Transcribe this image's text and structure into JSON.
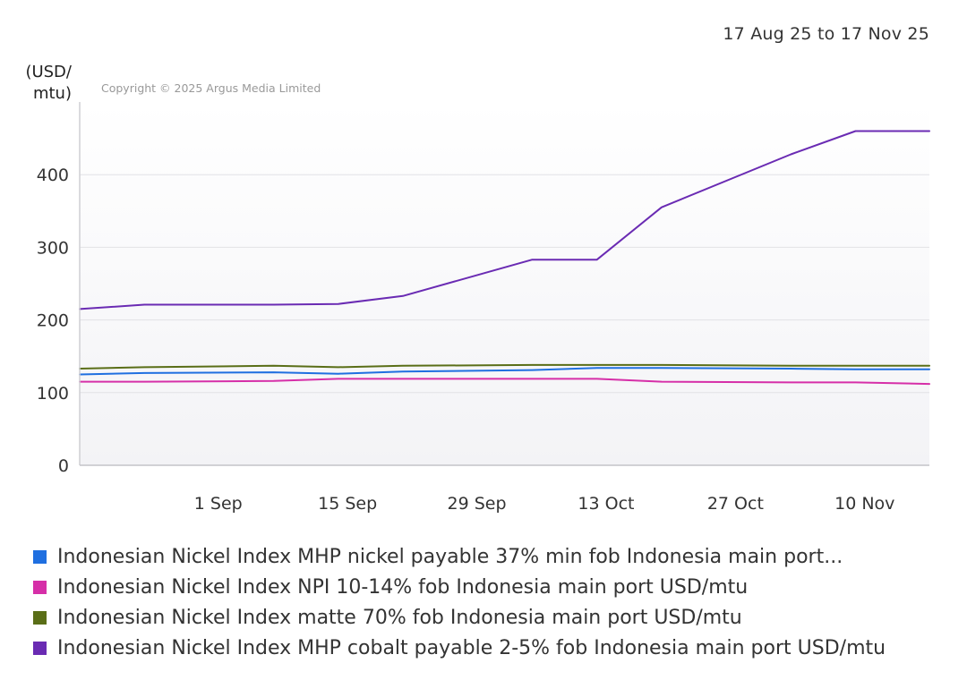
{
  "date_range": "17 Aug 25 to 17 Nov 25",
  "copyright": "Copyright © 2025 Argus Media Limited",
  "chart_data": {
    "type": "line",
    "ylabel": "(USD/ mtu)",
    "ylabel_lines": [
      "(USD/",
      "mtu)"
    ],
    "ylim": [
      0,
      500
    ],
    "yticks": [
      0,
      100,
      200,
      300,
      400
    ],
    "grid": true,
    "legend_position": "bottom",
    "x_range": [
      "2025-08-17",
      "2025-11-17"
    ],
    "xticks": [
      {
        "date": "2025-09-01",
        "label": "1 Sep"
      },
      {
        "date": "2025-09-15",
        "label": "15 Sep"
      },
      {
        "date": "2025-09-29",
        "label": "29 Sep"
      },
      {
        "date": "2025-10-13",
        "label": "13 Oct"
      },
      {
        "date": "2025-10-27",
        "label": "27 Oct"
      },
      {
        "date": "2025-11-10",
        "label": "10 Nov"
      }
    ],
    "series": [
      {
        "name": "Indonesian Nickel Index MHP nickel payable 37% min fob Indonesia main port...",
        "color": "#1f6fe0",
        "points": [
          {
            "x": "2025-08-17",
            "y": 125
          },
          {
            "x": "2025-08-24",
            "y": 127
          },
          {
            "x": "2025-09-07",
            "y": 128
          },
          {
            "x": "2025-09-14",
            "y": 126
          },
          {
            "x": "2025-09-21",
            "y": 129
          },
          {
            "x": "2025-10-05",
            "y": 131
          },
          {
            "x": "2025-10-12",
            "y": 134
          },
          {
            "x": "2025-10-19",
            "y": 134
          },
          {
            "x": "2025-11-02",
            "y": 133
          },
          {
            "x": "2025-11-09",
            "y": 132
          },
          {
            "x": "2025-11-17",
            "y": 132
          }
        ]
      },
      {
        "name": "Indonesian Nickel Index NPI 10-14% fob Indonesia main port USD/mtu",
        "color": "#d62fa8",
        "points": [
          {
            "x": "2025-08-17",
            "y": 115
          },
          {
            "x": "2025-08-24",
            "y": 115
          },
          {
            "x": "2025-09-07",
            "y": 116
          },
          {
            "x": "2025-09-14",
            "y": 119
          },
          {
            "x": "2025-09-21",
            "y": 119
          },
          {
            "x": "2025-10-05",
            "y": 119
          },
          {
            "x": "2025-10-12",
            "y": 119
          },
          {
            "x": "2025-10-19",
            "y": 115
          },
          {
            "x": "2025-11-02",
            "y": 114
          },
          {
            "x": "2025-11-09",
            "y": 114
          },
          {
            "x": "2025-11-17",
            "y": 112
          }
        ]
      },
      {
        "name": "Indonesian Nickel Index matte 70% fob Indonesia main port USD/mtu",
        "color": "#5a6e17",
        "points": [
          {
            "x": "2025-08-17",
            "y": 133
          },
          {
            "x": "2025-08-24",
            "y": 135
          },
          {
            "x": "2025-09-07",
            "y": 137
          },
          {
            "x": "2025-09-14",
            "y": 135
          },
          {
            "x": "2025-09-21",
            "y": 137
          },
          {
            "x": "2025-10-05",
            "y": 138
          },
          {
            "x": "2025-10-12",
            "y": 138
          },
          {
            "x": "2025-10-19",
            "y": 138
          },
          {
            "x": "2025-11-02",
            "y": 137
          },
          {
            "x": "2025-11-09",
            "y": 137
          },
          {
            "x": "2025-11-17",
            "y": 137
          }
        ]
      },
      {
        "name": "Indonesian Nickel Index MHP cobalt payable 2-5% fob Indonesia main port USD/mtu",
        "color": "#6a2bb3",
        "points": [
          {
            "x": "2025-08-17",
            "y": 215
          },
          {
            "x": "2025-08-24",
            "y": 221
          },
          {
            "x": "2025-09-07",
            "y": 221
          },
          {
            "x": "2025-09-14",
            "y": 222
          },
          {
            "x": "2025-09-21",
            "y": 233
          },
          {
            "x": "2025-10-05",
            "y": 283
          },
          {
            "x": "2025-10-12",
            "y": 283
          },
          {
            "x": "2025-10-19",
            "y": 355
          },
          {
            "x": "2025-11-02",
            "y": 428
          },
          {
            "x": "2025-11-09",
            "y": 460
          },
          {
            "x": "2025-11-17",
            "y": 460
          }
        ]
      }
    ]
  }
}
